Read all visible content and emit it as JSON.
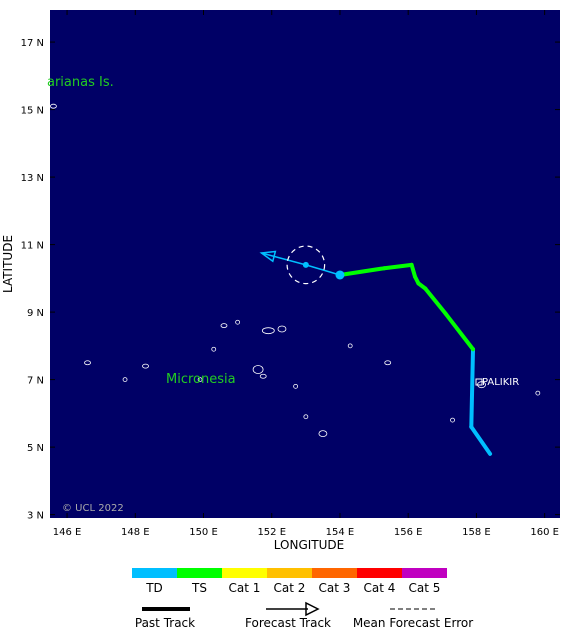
{
  "axes": {
    "x_label": "LONGITUDE",
    "y_label": "LATITUDE",
    "x_ticks": [
      "146 E",
      "148 E",
      "150 E",
      "152 E",
      "154 E",
      "156 E",
      "158 E",
      "160 E"
    ],
    "y_ticks": [
      "17 N",
      "15 N",
      "13 N",
      "11 N",
      "9 N",
      "7 N",
      "5 N",
      "3 N"
    ]
  },
  "map_labels": {
    "marianas": "arianas Is.",
    "micronesia": "Micronesia",
    "palikir": "PALIKIR",
    "copyright": "© UCL 2022"
  },
  "colors": {
    "ocean": "#000066",
    "land_outline": "#ffffff",
    "td": "#00bfff",
    "ts": "#00ff00",
    "cat1": "#ffff00",
    "cat2": "#ffc000",
    "cat3": "#ff6600",
    "cat4": "#ff0000",
    "cat5": "#c000c0",
    "region_label": "#22cc22"
  },
  "intensity_scale": [
    "TD",
    "TS",
    "Cat 1",
    "Cat 2",
    "Cat 3",
    "Cat 4",
    "Cat 5"
  ],
  "legend": {
    "past_track": "Past Track",
    "forecast_track": "Forecast Track",
    "mean_error": "Mean Forecast Error"
  },
  "track": {
    "past": [
      {
        "lon": 158.4,
        "lat": 4.8,
        "cat": "td"
      },
      {
        "lon": 157.85,
        "lat": 5.6,
        "cat": "td"
      },
      {
        "lon": 157.9,
        "lat": 7.9,
        "cat": "td"
      },
      {
        "lon": 157.1,
        "lat": 8.95,
        "cat": "ts"
      },
      {
        "lon": 156.5,
        "lat": 9.7,
        "cat": "ts"
      },
      {
        "lon": 156.3,
        "lat": 9.85,
        "cat": "ts"
      },
      {
        "lon": 156.2,
        "lat": 10.05,
        "cat": "ts"
      },
      {
        "lon": 156.1,
        "lat": 10.4,
        "cat": "ts"
      },
      {
        "lon": 155.3,
        "lat": 10.3,
        "cat": "ts"
      },
      {
        "lon": 154.0,
        "lat": 10.1,
        "cat": "ts"
      }
    ],
    "forecast": [
      {
        "lon": 154.0,
        "lat": 10.1
      },
      {
        "lon": 153.0,
        "lat": 10.4
      },
      {
        "lon": 151.7,
        "lat": 10.75
      }
    ],
    "current_position": {
      "lon": 154.0,
      "lat": 10.1
    },
    "forecast_point": {
      "lon": 153.0,
      "lat": 10.4
    },
    "error_circle": {
      "lon": 153.0,
      "lat": 10.4,
      "radius_deg": 0.55
    }
  }
}
